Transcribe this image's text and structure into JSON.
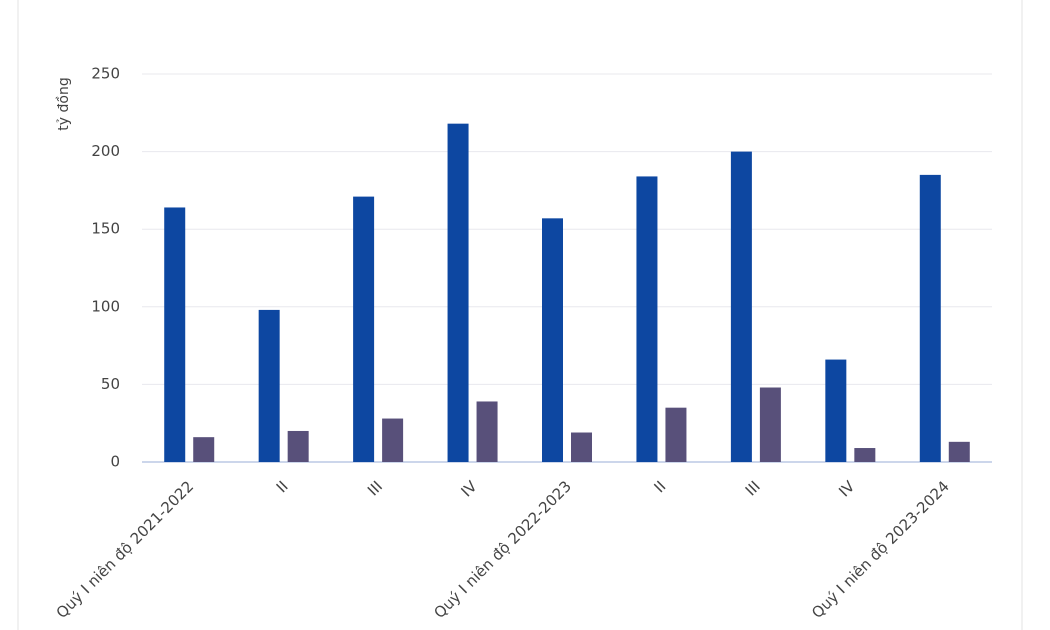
{
  "chart_data": {
    "type": "bar",
    "y_label": "tỷ đồng",
    "categories": [
      "Quý I niên độ 2021-2022",
      "II",
      "III",
      "IV",
      "Quý I niên độ 2022-2023",
      "II",
      "III",
      "IV",
      "Quý I niên độ 2023-2024"
    ],
    "series": [
      {
        "color": "#0d47a1",
        "values": [
          164,
          98,
          171,
          218,
          157,
          184,
          200,
          66,
          185
        ]
      },
      {
        "color": "#58507a",
        "values": [
          16,
          20,
          28,
          39,
          19,
          35,
          48,
          9,
          13
        ]
      }
    ],
    "ylim": [
      0,
      250
    ],
    "yticks": [
      0,
      50,
      100,
      150,
      200,
      250
    ],
    "grid": true
  }
}
